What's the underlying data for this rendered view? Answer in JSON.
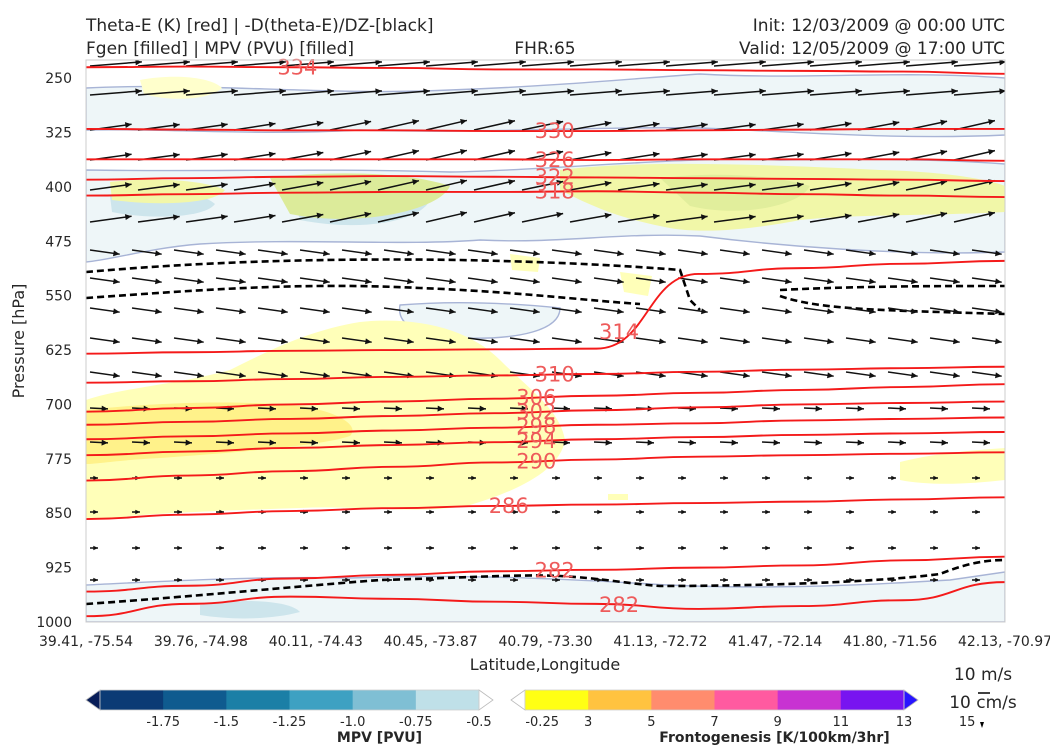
{
  "chart_data": {
    "type": "contour-cross-section",
    "title_left": [
      "Theta-E (K) [red] | -D(theta-E)/DZ-[black]",
      "Fgen [filled] | MPV (PVU) [filled]"
    ],
    "title_center": "FHR:65",
    "title_right": [
      "Init: 12/03/2009 @ 00:00 UTC",
      "Valid: 12/05/2009 @ 17:00 UTC"
    ],
    "xlabel": "Latitude,Longitude",
    "ylabel": "Pressure [hPa]",
    "x_ticks": [
      "39.41, -75.54",
      "39.76, -74.98",
      "40.11, -74.43",
      "40.45, -73.87",
      "40.79, -73.30",
      "41.13, -72.72",
      "41.47, -72.14",
      "41.80, -71.56",
      "42.13, -70.97"
    ],
    "y_ticks": [
      "250",
      "325",
      "400",
      "475",
      "550",
      "625",
      "700",
      "775",
      "850",
      "925",
      "1000"
    ],
    "y_range": [
      1000,
      225
    ],
    "theta_e_contours": [
      {
        "label": "334",
        "p": [
          235,
          234,
          235,
          236,
          238,
          238,
          239,
          240,
          241,
          244
        ],
        "label_x": 0.23
      },
      {
        "label": "330",
        "p": [
          320,
          321,
          322,
          322,
          323,
          323,
          322,
          321,
          320,
          320
        ],
        "label_x": 0.51
      },
      {
        "label": "326",
        "p": [
          362,
          362,
          362,
          362,
          362,
          363,
          362,
          362,
          362,
          364
        ],
        "label_x": 0.51
      },
      {
        "label": "322",
        "p": [
          390,
          388,
          386,
          385,
          386,
          387,
          388,
          389,
          390,
          392
        ],
        "label_x": 0.51
      },
      {
        "label": "318",
        "p": [
          412,
          410,
          408,
          407,
          407,
          406,
          408,
          410,
          412,
          414
        ],
        "label_x": 0.51
      },
      {
        "label": "314",
        "p": [
          630,
          628,
          626,
          625,
          624,
          623,
          520,
          512,
          506,
          502
        ],
        "label_x": 0.58
      },
      {
        "label": "310",
        "p": [
          670,
          668,
          665,
          662,
          660,
          658,
          655,
          652,
          650,
          648
        ],
        "label_x": 0.51
      },
      {
        "label": "306",
        "p": [
          710,
          705,
          700,
          696,
          692,
          688,
          684,
          680,
          676,
          672
        ],
        "label_x": 0.49
      },
      {
        "label": "302",
        "p": [
          728,
          724,
          720,
          716,
          712,
          708,
          704,
          700,
          698,
          696
        ],
        "label_x": 0.49
      },
      {
        "label": "298",
        "p": [
          748,
          744,
          740,
          736,
          732,
          728,
          726,
          722,
          720,
          718
        ],
        "label_x": 0.49
      },
      {
        "label": "294",
        "p": [
          770,
          765,
          760,
          756,
          752,
          748,
          745,
          742,
          740,
          738
        ],
        "label_x": 0.49
      },
      {
        "label": "290",
        "p": [
          805,
          798,
          792,
          786,
          780,
          776,
          772,
          770,
          768,
          766
        ],
        "label_x": 0.49
      },
      {
        "label": "286",
        "p": [
          858,
          852,
          847,
          843,
          840,
          838,
          836,
          834,
          831,
          828
        ],
        "label_x": 0.46
      },
      {
        "label": "282",
        "p": [
          958,
          950,
          940,
          935,
          930,
          928,
          925,
          922,
          915,
          910
        ],
        "label_x": 0.51
      },
      {
        "label": "282",
        "p": [
          992,
          975,
          965,
          968,
          972,
          975,
          982,
          978,
          970,
          945
        ],
        "label_x": 0.58
      }
    ],
    "colorbars": [
      {
        "label": "MPV [PVU]",
        "ticks": [
          "-1.75",
          "-1.5",
          "-1.25",
          "-1.0",
          "-0.75",
          "-0.5",
          "-0.25"
        ],
        "colors": [
          "#081d58",
          "#0b3b75",
          "#0f5b8f",
          "#1b7fa6",
          "#3ea1c2",
          "#7fbfd4",
          "#bfe0e8",
          "#ffffff"
        ]
      },
      {
        "label": "Frontogenesis [K/100km/3hr]",
        "ticks": [
          "3",
          "5",
          "7",
          "9",
          "11",
          "13",
          "15"
        ],
        "colors": [
          "#ffffff",
          "#ffff14",
          "#ffc340",
          "#ff8c6e",
          "#ff5aa0",
          "#c832d2",
          "#7814f0",
          "#2814ff"
        ]
      }
    ],
    "vector_key": [
      "10 m/s",
      "10 cm/s"
    ]
  }
}
